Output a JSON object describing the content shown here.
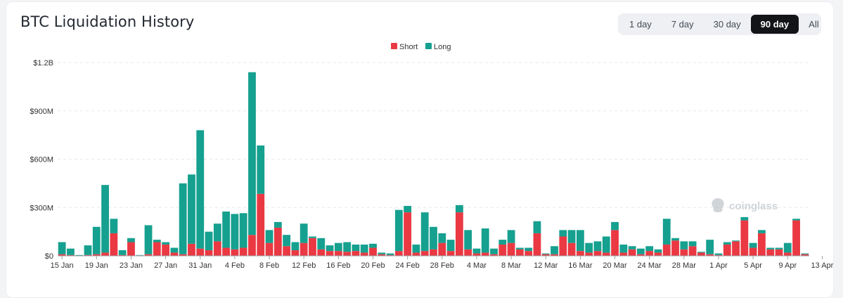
{
  "header": {
    "title": "BTC Liquidation History"
  },
  "range_tabs": [
    {
      "label": "1 day",
      "active": false
    },
    {
      "label": "7 day",
      "active": false
    },
    {
      "label": "30 day",
      "active": false
    },
    {
      "label": "90 day",
      "active": true
    },
    {
      "label": "All",
      "active": false
    }
  ],
  "watermark": "coinglass",
  "colors": {
    "short": "#ea3943",
    "long": "#16a08f",
    "grid": "#e6e8eb",
    "axis_text": "#333333"
  },
  "chart_data": {
    "type": "bar",
    "stacked": true,
    "unit": "USD",
    "x_ticks": [
      "15 Jan",
      "19 Jan",
      "23 Jan",
      "27 Jan",
      "31 Jan",
      "4 Feb",
      "8 Feb",
      "12 Feb",
      "16 Feb",
      "20 Feb",
      "24 Feb",
      "28 Feb",
      "4 Mar",
      "8 Mar",
      "12 Mar",
      "16 Mar",
      "20 Mar",
      "24 Mar",
      "28 Mar",
      "1 Apr",
      "5 Apr",
      "9 Apr",
      "13 Apr"
    ],
    "y_ticks": [
      {
        "value": 0,
        "label": "$0"
      },
      {
        "value": 300000000,
        "label": "$300M"
      },
      {
        "value": 600000000,
        "label": "$600M"
      },
      {
        "value": 900000000,
        "label": "$900M"
      },
      {
        "value": 1200000000,
        "label": "$1.2B"
      }
    ],
    "ylim": [
      0,
      1200000000
    ],
    "grid": true,
    "legend_position": "top-center",
    "series": [
      {
        "name": "Short",
        "color": "#ea3943",
        "values": [
          10000000,
          5000000,
          2000000,
          5000000,
          10000000,
          20000000,
          140000000,
          5000000,
          85000000,
          3000000,
          10000000,
          85000000,
          70000000,
          20000000,
          10000000,
          75000000,
          45000000,
          35000000,
          90000000,
          50000000,
          40000000,
          50000000,
          130000000,
          385000000,
          80000000,
          175000000,
          60000000,
          35000000,
          80000000,
          110000000,
          40000000,
          30000000,
          30000000,
          25000000,
          30000000,
          20000000,
          50000000,
          10000000,
          5000000,
          30000000,
          270000000,
          20000000,
          30000000,
          40000000,
          80000000,
          30000000,
          270000000,
          40000000,
          15000000,
          20000000,
          10000000,
          70000000,
          80000000,
          40000000,
          30000000,
          140000000,
          10000000,
          10000000,
          120000000,
          80000000,
          30000000,
          20000000,
          30000000,
          20000000,
          160000000,
          20000000,
          40000000,
          10000000,
          30000000,
          20000000,
          70000000,
          95000000,
          40000000,
          60000000,
          20000000,
          10000000,
          5000000,
          70000000,
          90000000,
          220000000,
          50000000,
          140000000,
          40000000,
          40000000,
          20000000,
          220000000,
          10000000
        ]
      },
      {
        "name": "Long",
        "color": "#16a08f",
        "values": [
          75000000,
          40000000,
          3000000,
          60000000,
          170000000,
          420000000,
          90000000,
          30000000,
          25000000,
          2000000,
          180000000,
          15000000,
          15000000,
          30000000,
          440000000,
          430000000,
          735000000,
          115000000,
          110000000,
          225000000,
          220000000,
          215000000,
          1010000000,
          300000000,
          80000000,
          35000000,
          70000000,
          50000000,
          120000000,
          10000000,
          70000000,
          35000000,
          50000000,
          60000000,
          40000000,
          50000000,
          25000000,
          10000000,
          10000000,
          255000000,
          40000000,
          50000000,
          240000000,
          140000000,
          60000000,
          70000000,
          45000000,
          120000000,
          30000000,
          150000000,
          35000000,
          30000000,
          80000000,
          10000000,
          20000000,
          75000000,
          5000000,
          50000000,
          40000000,
          80000000,
          130000000,
          60000000,
          60000000,
          100000000,
          50000000,
          50000000,
          20000000,
          35000000,
          30000000,
          20000000,
          160000000,
          15000000,
          50000000,
          30000000,
          5000000,
          90000000,
          10000000,
          15000000,
          5000000,
          20000000,
          30000000,
          20000000,
          10000000,
          10000000,
          60000000,
          10000000,
          5000000
        ]
      }
    ]
  }
}
